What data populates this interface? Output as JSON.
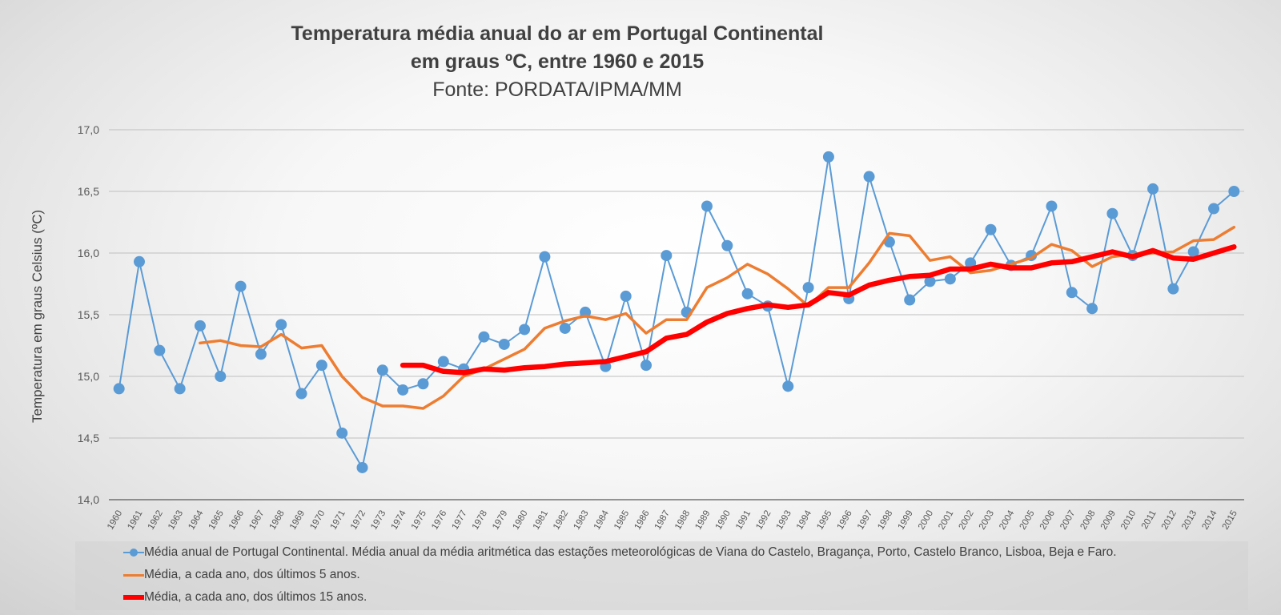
{
  "chart_data": {
    "type": "line",
    "title": "Temperatura média anual do ar em Portugal Continental",
    "subtitle": "em graus ºC, entre 1960 e 2015",
    "source": "Fonte: PORDATA/IPMA/MM",
    "xlabel": "",
    "ylabel": "Temperatura em graus Celsius  (ºC)",
    "ylim": [
      14.0,
      17.0
    ],
    "yticks": [
      "14,0",
      "14,5",
      "15,0",
      "15,5",
      "16,0",
      "16,5",
      "17,0"
    ],
    "ytick_values": [
      14.0,
      14.5,
      15.0,
      15.5,
      16.0,
      16.5,
      17.0
    ],
    "grid": true,
    "legend_position": "bottom",
    "x": [
      "1960",
      "1961",
      "1962",
      "1963",
      "1964",
      "1965",
      "1966",
      "1967",
      "1968",
      "1969",
      "1970",
      "1971",
      "1972",
      "1973",
      "1974",
      "1975",
      "1976",
      "1977",
      "1978",
      "1979",
      "1980",
      "1981",
      "1982",
      "1983",
      "1984",
      "1985",
      "1986",
      "1987",
      "1988",
      "1989",
      "1990",
      "1991",
      "1992",
      "1993",
      "1994",
      "1995",
      "1996",
      "1997",
      "1998",
      "1999",
      "2000",
      "2001",
      "2002",
      "2003",
      "2004",
      "2005",
      "2006",
      "2007",
      "2008",
      "2009",
      "2010",
      "2011",
      "2012",
      "2013",
      "2014",
      "2015"
    ],
    "series": [
      {
        "name": "Média anual de Portugal Continental. Média anual da média aritmética das estações meteorológicas de Viana do Castelo, Bragança, Porto, Castelo Branco, Lisboa, Beja e Faro.",
        "color": "#5b9bd5",
        "style": "line-markers",
        "values": [
          14.9,
          15.93,
          15.21,
          14.9,
          15.41,
          15.0,
          15.73,
          15.18,
          15.42,
          14.86,
          15.09,
          14.54,
          14.26,
          15.05,
          14.89,
          14.94,
          15.12,
          15.06,
          15.32,
          15.26,
          15.38,
          15.97,
          15.39,
          15.52,
          15.08,
          15.65,
          15.09,
          15.98,
          15.52,
          16.38,
          16.06,
          15.67,
          15.57,
          14.92,
          15.72,
          16.78,
          15.63,
          16.62,
          16.09,
          15.62,
          15.77,
          15.79,
          15.92,
          16.19,
          15.9,
          15.98,
          16.38,
          15.68,
          15.55,
          16.32,
          15.98,
          16.52,
          15.71,
          16.01,
          16.36,
          16.5
        ]
      },
      {
        "name": "Média, a cada ano, dos últimos 5 anos.",
        "color": "#ed7d31",
        "style": "line",
        "values": [
          null,
          null,
          null,
          null,
          15.27,
          15.29,
          15.25,
          15.24,
          15.34,
          15.23,
          15.25,
          15.0,
          14.83,
          14.76,
          14.76,
          14.74,
          14.84,
          15.0,
          15.06,
          15.14,
          15.22,
          15.39,
          15.45,
          15.49,
          15.46,
          15.51,
          15.35,
          15.46,
          15.46,
          15.72,
          15.8,
          15.91,
          15.83,
          15.71,
          15.57,
          15.72,
          15.72,
          15.92,
          16.16,
          16.14,
          15.94,
          15.97,
          15.84,
          15.86,
          15.91,
          15.96,
          16.07,
          16.02,
          15.89,
          15.97,
          15.99,
          16.0,
          16.01,
          16.1,
          16.11,
          16.21
        ]
      },
      {
        "name": "Média, a cada ano, dos últimos 15 anos.",
        "color": "#ff0000",
        "style": "thick-line",
        "values": [
          null,
          null,
          null,
          null,
          null,
          null,
          null,
          null,
          null,
          null,
          null,
          null,
          null,
          null,
          15.09,
          15.09,
          15.04,
          15.03,
          15.06,
          15.05,
          15.07,
          15.08,
          15.1,
          15.11,
          15.12,
          15.16,
          15.2,
          15.31,
          15.34,
          15.44,
          15.51,
          15.55,
          15.58,
          15.56,
          15.58,
          15.68,
          15.66,
          15.74,
          15.78,
          15.81,
          15.82,
          15.87,
          15.87,
          15.91,
          15.88,
          15.88,
          15.92,
          15.93,
          15.97,
          16.01,
          15.97,
          16.02,
          15.96,
          15.95,
          16.0,
          16.05
        ]
      }
    ]
  }
}
